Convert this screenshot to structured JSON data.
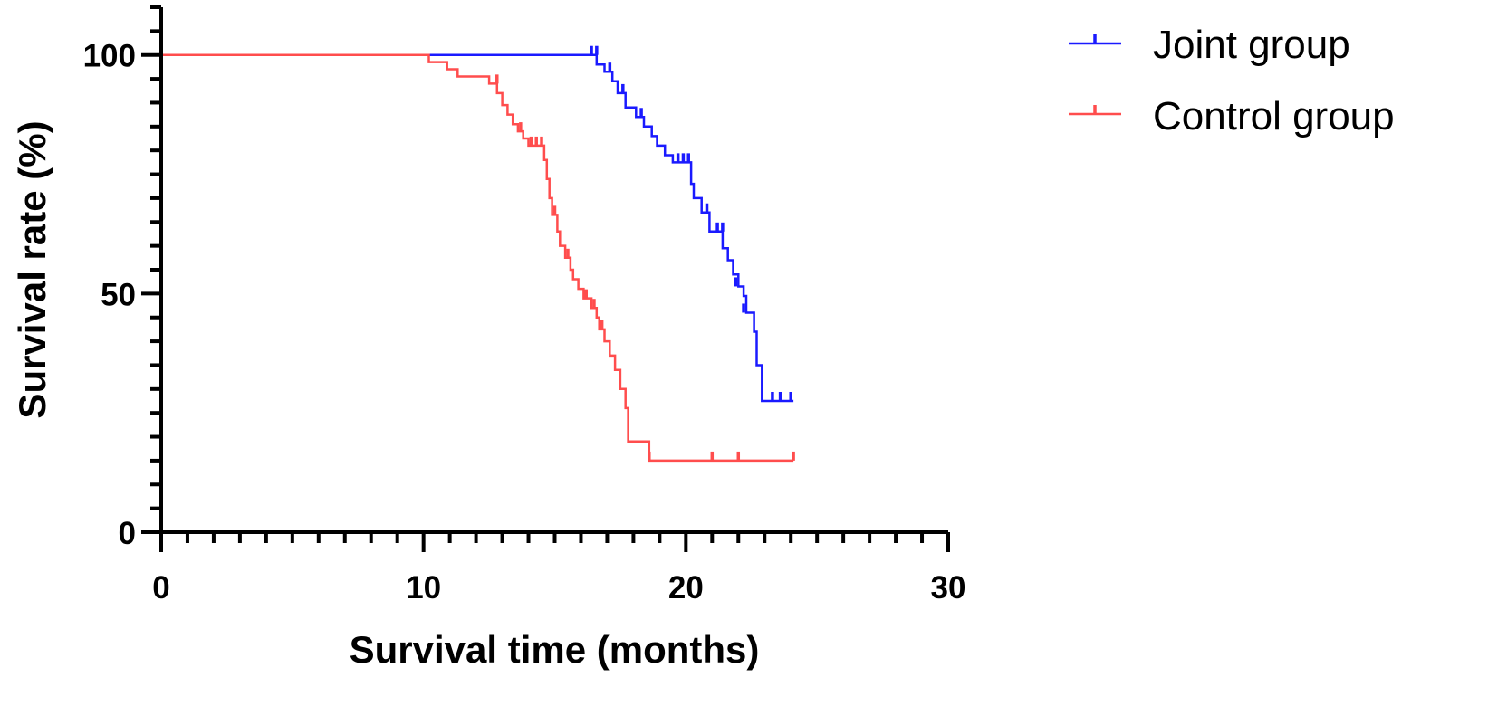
{
  "chart_data": {
    "type": "line",
    "xlabel": "Survival time (months)",
    "ylabel": "Survival rate (%)",
    "xlim": [
      0,
      30
    ],
    "ylim": [
      0,
      110
    ],
    "x_ticks": [
      0,
      10,
      20,
      30
    ],
    "y_ticks": [
      0,
      50,
      100
    ],
    "x_minor_step": 1,
    "y_minor_step": 5,
    "grid": false,
    "legend_position": "top-right",
    "series": [
      {
        "name": "Joint group",
        "color": "#1a1aff",
        "step": true,
        "points": [
          [
            0,
            100
          ],
          [
            16.6,
            100
          ],
          [
            16.6,
            98
          ],
          [
            16.9,
            98
          ],
          [
            16.9,
            96.5
          ],
          [
            17.2,
            96.5
          ],
          [
            17.2,
            94.5
          ],
          [
            17.4,
            94.5
          ],
          [
            17.4,
            92
          ],
          [
            17.7,
            92
          ],
          [
            17.7,
            89
          ],
          [
            18.1,
            89
          ],
          [
            18.1,
            87
          ],
          [
            18.4,
            87
          ],
          [
            18.4,
            85
          ],
          [
            18.7,
            85
          ],
          [
            18.7,
            83
          ],
          [
            18.9,
            83
          ],
          [
            18.9,
            81
          ],
          [
            19.2,
            81
          ],
          [
            19.2,
            79
          ],
          [
            19.5,
            79
          ],
          [
            19.5,
            77.5
          ],
          [
            20.2,
            77.5
          ],
          [
            20.2,
            73
          ],
          [
            20.3,
            73
          ],
          [
            20.3,
            70
          ],
          [
            20.6,
            70
          ],
          [
            20.6,
            67
          ],
          [
            20.9,
            67
          ],
          [
            20.9,
            63
          ],
          [
            21.4,
            63
          ],
          [
            21.4,
            59.5
          ],
          [
            21.6,
            59.5
          ],
          [
            21.6,
            57
          ],
          [
            21.8,
            57
          ],
          [
            21.8,
            54
          ],
          [
            22.0,
            54
          ],
          [
            22.0,
            51.5
          ],
          [
            22.2,
            51.5
          ],
          [
            22.2,
            49.5
          ],
          [
            22.3,
            49.5
          ],
          [
            22.3,
            46
          ],
          [
            22.6,
            46
          ],
          [
            22.6,
            42
          ],
          [
            22.7,
            42
          ],
          [
            22.7,
            35
          ],
          [
            22.9,
            35
          ],
          [
            22.9,
            27.5
          ],
          [
            24.1,
            27.5
          ]
        ],
        "censored": [
          [
            16.4,
            100
          ],
          [
            16.6,
            100
          ],
          [
            17.1,
            96.5
          ],
          [
            17.6,
            92
          ],
          [
            18.3,
            87
          ],
          [
            19.7,
            77.5
          ],
          [
            19.9,
            77.5
          ],
          [
            20.1,
            77.5
          ],
          [
            20.8,
            67
          ],
          [
            21.2,
            63
          ],
          [
            21.4,
            63
          ],
          [
            21.9,
            51.5
          ],
          [
            22.2,
            46
          ],
          [
            23.3,
            27.5
          ],
          [
            23.6,
            27.5
          ],
          [
            24.0,
            27.5
          ]
        ]
      },
      {
        "name": "Control group",
        "color": "#ff4d4d",
        "step": true,
        "points": [
          [
            0,
            100
          ],
          [
            10.2,
            100
          ],
          [
            10.2,
            98.5
          ],
          [
            10.9,
            98.5
          ],
          [
            10.9,
            97
          ],
          [
            11.3,
            97
          ],
          [
            11.3,
            95.5
          ],
          [
            12.5,
            95.5
          ],
          [
            12.5,
            94
          ],
          [
            12.8,
            94
          ],
          [
            12.8,
            92
          ],
          [
            13.0,
            92
          ],
          [
            13.0,
            89.5
          ],
          [
            13.2,
            89.5
          ],
          [
            13.2,
            87.5
          ],
          [
            13.4,
            87.5
          ],
          [
            13.4,
            85.5
          ],
          [
            13.6,
            85.5
          ],
          [
            13.6,
            84
          ],
          [
            13.8,
            84
          ],
          [
            13.8,
            82.5
          ],
          [
            14.0,
            82.5
          ],
          [
            14.0,
            81
          ],
          [
            14.6,
            81
          ],
          [
            14.6,
            78
          ],
          [
            14.7,
            78
          ],
          [
            14.7,
            74
          ],
          [
            14.8,
            74
          ],
          [
            14.8,
            70
          ],
          [
            14.9,
            70
          ],
          [
            14.9,
            66.5
          ],
          [
            15.1,
            66.5
          ],
          [
            15.1,
            63
          ],
          [
            15.2,
            63
          ],
          [
            15.2,
            60
          ],
          [
            15.4,
            60
          ],
          [
            15.4,
            57.5
          ],
          [
            15.6,
            57.5
          ],
          [
            15.6,
            55
          ],
          [
            15.7,
            55
          ],
          [
            15.7,
            53
          ],
          [
            15.9,
            53
          ],
          [
            15.9,
            51
          ],
          [
            16.1,
            51
          ],
          [
            16.1,
            49
          ],
          [
            16.4,
            49
          ],
          [
            16.4,
            47
          ],
          [
            16.6,
            47
          ],
          [
            16.6,
            45
          ],
          [
            16.7,
            45
          ],
          [
            16.7,
            42.5
          ],
          [
            16.9,
            42.5
          ],
          [
            16.9,
            40
          ],
          [
            17.1,
            40
          ],
          [
            17.1,
            37
          ],
          [
            17.3,
            37
          ],
          [
            17.3,
            34
          ],
          [
            17.5,
            34
          ],
          [
            17.5,
            30
          ],
          [
            17.7,
            30
          ],
          [
            17.7,
            26
          ],
          [
            17.8,
            26
          ],
          [
            17.8,
            19
          ],
          [
            18.6,
            19
          ],
          [
            18.6,
            15
          ],
          [
            24.1,
            15
          ]
        ],
        "censored": [
          [
            12.8,
            94
          ],
          [
            13.7,
            84
          ],
          [
            14.1,
            81
          ],
          [
            14.3,
            81
          ],
          [
            14.5,
            81
          ],
          [
            15.0,
            66.5
          ],
          [
            15.5,
            57.5
          ],
          [
            16.2,
            49
          ],
          [
            16.5,
            47
          ],
          [
            16.8,
            42.5
          ],
          [
            18.6,
            15
          ],
          [
            21.0,
            15
          ],
          [
            22.0,
            15
          ],
          [
            24.1,
            15
          ]
        ]
      }
    ]
  }
}
